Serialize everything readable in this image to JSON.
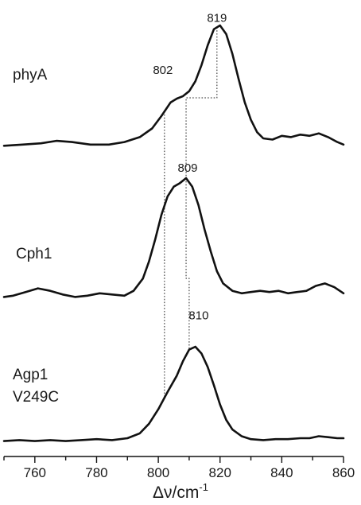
{
  "chart_data": {
    "type": "line",
    "xlabel": "Δν/cm",
    "xlabel_superscript": "-1",
    "xlim": [
      750,
      860
    ],
    "xticks": [
      760,
      780,
      800,
      820,
      840,
      860
    ],
    "y_axis_shown": false,
    "grid": false,
    "series": [
      {
        "name": "phyA",
        "peak_labels": [
          {
            "text": "819",
            "x": 819
          },
          {
            "text": "802",
            "x": 802
          }
        ],
        "points": [
          [
            750,
            0.03
          ],
          [
            756,
            0.04
          ],
          [
            762,
            0.05
          ],
          [
            767,
            0.07
          ],
          [
            772,
            0.06
          ],
          [
            778,
            0.04
          ],
          [
            784,
            0.04
          ],
          [
            789,
            0.06
          ],
          [
            794,
            0.1
          ],
          [
            798,
            0.17
          ],
          [
            801,
            0.27
          ],
          [
            804,
            0.38
          ],
          [
            806,
            0.41
          ],
          [
            808,
            0.43
          ],
          [
            810,
            0.47
          ],
          [
            812,
            0.55
          ],
          [
            814,
            0.68
          ],
          [
            816,
            0.84
          ],
          [
            818,
            0.97
          ],
          [
            820,
            1.0
          ],
          [
            822,
            0.93
          ],
          [
            824,
            0.77
          ],
          [
            826,
            0.57
          ],
          [
            828,
            0.38
          ],
          [
            830,
            0.24
          ],
          [
            832,
            0.14
          ],
          [
            834,
            0.09
          ],
          [
            837,
            0.08
          ],
          [
            840,
            0.11
          ],
          [
            843,
            0.1
          ],
          [
            846,
            0.12
          ],
          [
            849,
            0.11
          ],
          [
            852,
            0.13
          ],
          [
            855,
            0.1
          ],
          [
            858,
            0.06
          ],
          [
            860,
            0.04
          ]
        ]
      },
      {
        "name": "Cph1",
        "peak_labels": [
          {
            "text": "809",
            "x": 809
          }
        ],
        "points": [
          [
            750,
            0.03
          ],
          [
            753,
            0.04
          ],
          [
            757,
            0.07
          ],
          [
            761,
            0.1
          ],
          [
            765,
            0.08
          ],
          [
            769,
            0.05
          ],
          [
            773,
            0.03
          ],
          [
            777,
            0.04
          ],
          [
            781,
            0.06
          ],
          [
            785,
            0.05
          ],
          [
            789,
            0.04
          ],
          [
            792,
            0.08
          ],
          [
            795,
            0.18
          ],
          [
            797,
            0.32
          ],
          [
            799,
            0.5
          ],
          [
            801,
            0.7
          ],
          [
            803,
            0.85
          ],
          [
            805,
            0.93
          ],
          [
            807,
            0.96
          ],
          [
            809,
            1.0
          ],
          [
            811,
            0.93
          ],
          [
            813,
            0.78
          ],
          [
            815,
            0.58
          ],
          [
            817,
            0.4
          ],
          [
            819,
            0.24
          ],
          [
            821,
            0.14
          ],
          [
            824,
            0.08
          ],
          [
            827,
            0.06
          ],
          [
            830,
            0.07
          ],
          [
            833,
            0.08
          ],
          [
            836,
            0.07
          ],
          [
            839,
            0.08
          ],
          [
            842,
            0.06
          ],
          [
            845,
            0.07
          ],
          [
            848,
            0.08
          ],
          [
            851,
            0.12
          ],
          [
            854,
            0.14
          ],
          [
            857,
            0.11
          ],
          [
            860,
            0.06
          ]
        ]
      },
      {
        "name": "Agp1 V249C",
        "peak_labels": [
          {
            "text": "810",
            "x": 810
          }
        ],
        "points": [
          [
            750,
            0.02
          ],
          [
            755,
            0.03
          ],
          [
            760,
            0.02
          ],
          [
            765,
            0.03
          ],
          [
            770,
            0.02
          ],
          [
            775,
            0.03
          ],
          [
            780,
            0.04
          ],
          [
            785,
            0.03
          ],
          [
            790,
            0.05
          ],
          [
            794,
            0.1
          ],
          [
            797,
            0.2
          ],
          [
            800,
            0.35
          ],
          [
            803,
            0.53
          ],
          [
            806,
            0.7
          ],
          [
            808,
            0.85
          ],
          [
            810,
            0.97
          ],
          [
            812,
            1.0
          ],
          [
            814,
            0.93
          ],
          [
            816,
            0.79
          ],
          [
            818,
            0.6
          ],
          [
            820,
            0.4
          ],
          [
            822,
            0.24
          ],
          [
            824,
            0.14
          ],
          [
            827,
            0.07
          ],
          [
            830,
            0.04
          ],
          [
            834,
            0.03
          ],
          [
            838,
            0.04
          ],
          [
            842,
            0.04
          ],
          [
            846,
            0.05
          ],
          [
            849,
            0.05
          ],
          [
            852,
            0.07
          ],
          [
            855,
            0.06
          ],
          [
            858,
            0.05
          ],
          [
            860,
            0.05
          ]
        ]
      }
    ]
  }
}
